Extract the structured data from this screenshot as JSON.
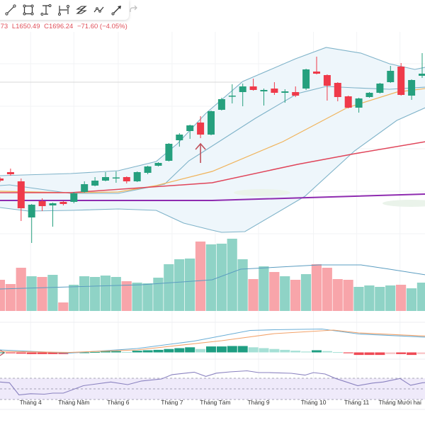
{
  "toolbar": {
    "tools": [
      {
        "name": "trend-line-icon"
      },
      {
        "name": "rectangle-icon"
      },
      {
        "name": "text-icon"
      },
      {
        "name": "measure-icon"
      },
      {
        "name": "parallel-channel-icon"
      },
      {
        "name": "path-icon"
      },
      {
        "name": "arrow-marker-icon"
      }
    ],
    "redo": "redo-icon"
  },
  "legend": {
    "high_partial": ".73",
    "low": "L1650.49",
    "close": "C1696.24",
    "change": "−71.60 (−4.05%)"
  },
  "colors": {
    "up": "#26a07e",
    "down": "#ef3a4a",
    "vol_up": "#8fd3c6",
    "vol_down": "#f8a5aa",
    "bb": "#7fb3c9",
    "bb_fill": "#eef6fb",
    "ma_orange": "#f0b35a",
    "ma_red": "#e0455a",
    "ma_purple": "#8e2bb0",
    "macd": "#6aaed6",
    "signal": "#f2a26a",
    "rsi": "#8a82c0",
    "rsi_band": "#efeafa",
    "annotation": "#c0505a"
  },
  "chart_data": [
    {
      "type": "candlestick",
      "title": "",
      "ylim": [
        744,
        1884
      ],
      "ohlc": [
        [
          1116,
          1124,
          1096,
          1104
        ],
        [
          1152,
          1172,
          1132,
          1140
        ],
        [
          1100,
          1116,
          876,
          948
        ],
        [
          896,
          972,
          752,
          968
        ],
        [
          988,
          1004,
          932,
          960
        ],
        [
          964,
          980,
          844,
          976
        ],
        [
          984,
          988,
          964,
          972
        ],
        [
          984,
          1040,
          976,
          1032
        ],
        [
          1040,
          1100,
          1036,
          1084
        ],
        [
          1076,
          1124,
          1072,
          1104
        ],
        [
          1104,
          1152,
          1100,
          1124
        ],
        [
          1120,
          1156,
          1092,
          1122
        ],
        [
          1124,
          1128,
          1088,
          1100
        ],
        [
          1100,
          1156,
          1096,
          1152
        ],
        [
          1148,
          1188,
          1140,
          1184
        ],
        [
          1188,
          1208,
          1184,
          1204
        ],
        [
          1216,
          1316,
          1212,
          1312
        ],
        [
          1332,
          1372,
          1296,
          1364
        ],
        [
          1384,
          1420,
          1340,
          1416
        ],
        [
          1432,
          1468,
          1344,
          1364
        ],
        [
          1364,
          1500,
          1360,
          1496
        ],
        [
          1504,
          1572,
          1500,
          1564
        ],
        [
          1580,
          1648,
          1540,
          1584
        ],
        [
          1604,
          1652,
          1524,
          1636
        ],
        [
          1636,
          1680,
          1612,
          1616
        ],
        [
          1608,
          1624,
          1528,
          1616
        ],
        [
          1624,
          1660,
          1588,
          1600
        ],
        [
          1600,
          1620,
          1544,
          1608
        ],
        [
          1604,
          1636,
          1576,
          1584
        ],
        [
          1624,
          1736,
          1616,
          1732
        ],
        [
          1720,
          1804,
          1704,
          1708
        ],
        [
          1700,
          1704,
          1556,
          1640
        ],
        [
          1656,
          1660,
          1552,
          1576
        ],
        [
          1580,
          1584,
          1512,
          1516
        ],
        [
          1516,
          1572,
          1488,
          1568
        ],
        [
          1576,
          1604,
          1572,
          1600
        ],
        [
          1600,
          1656,
          1596,
          1652
        ],
        [
          1660,
          1752,
          1656,
          1724
        ],
        [
          1748,
          1768,
          1584,
          1588
        ],
        [
          1584,
          1676,
          1560,
          1672
        ],
        [
          1696,
          1824,
          1684,
          1708
        ]
      ],
      "overlays": {
        "bb_upper": [
          [
            0,
            1132
          ],
          [
            6.7,
            1144
          ],
          [
            11.2,
            1160
          ],
          [
            14.8,
            1212
          ],
          [
            16.8,
            1312
          ],
          [
            19.5,
            1484
          ],
          [
            23,
            1664
          ],
          [
            28,
            1792
          ],
          [
            30.9,
            1856
          ],
          [
            34.2,
            1824
          ],
          [
            36.9,
            1764
          ],
          [
            39.3,
            1732
          ],
          [
            40.3,
            1744
          ]
        ],
        "bb_middle": [
          [
            0,
            1076
          ],
          [
            0.9,
            1080
          ],
          [
            6.7,
            1032
          ],
          [
            11.2,
            1032
          ],
          [
            15.6,
            1084
          ],
          [
            17.9,
            1216
          ],
          [
            19.7,
            1284
          ],
          [
            24.2,
            1456
          ],
          [
            28.2,
            1596
          ],
          [
            30.9,
            1636
          ],
          [
            33.6,
            1628
          ],
          [
            36.9,
            1620
          ],
          [
            40.3,
            1632
          ]
        ],
        "bb_lower": [
          [
            0,
            952
          ],
          [
            2.7,
            932
          ],
          [
            6.7,
            936
          ],
          [
            11.2,
            944
          ],
          [
            14.8,
            936
          ],
          [
            17.4,
            864
          ],
          [
            20.1,
            824
          ],
          [
            21,
            812
          ],
          [
            23.2,
            816
          ],
          [
            28.9,
            1016
          ],
          [
            33.6,
            1272
          ],
          [
            37.6,
            1444
          ],
          [
            40.3,
            1516
          ]
        ],
        "ma_orange": [
          [
            0,
            1044
          ],
          [
            6.7,
            1036
          ],
          [
            11.2,
            1040
          ],
          [
            14.8,
            1076
          ],
          [
            20.1,
            1156
          ],
          [
            26.8,
            1324
          ],
          [
            32.9,
            1516
          ],
          [
            37.6,
            1604
          ],
          [
            40.3,
            1624
          ]
        ],
        "ma_red": [
          [
            0,
            1036
          ],
          [
            6.7,
            1036
          ],
          [
            13.4,
            1064
          ],
          [
            20.1,
            1092
          ],
          [
            28.2,
            1196
          ],
          [
            33.6,
            1256
          ],
          [
            40.3,
            1324
          ]
        ],
        "ma_purple": [
          [
            0,
            992
          ],
          [
            20.1,
            992
          ],
          [
            40.3,
            1028
          ]
        ]
      },
      "annotation_arrow_at_index": 19
    },
    {
      "type": "bar",
      "title": "",
      "values": [
        44,
        38,
        61,
        49,
        48,
        51,
        12,
        37,
        49,
        48,
        50,
        48,
        42,
        40,
        39,
        47,
        66,
        73,
        74,
        98,
        94,
        95,
        102,
        73,
        45,
        63,
        55,
        49,
        44,
        52,
        66,
        61,
        45,
        44,
        34,
        36,
        34,
        36,
        37,
        32,
        40
      ],
      "ma": [
        [
          0,
          31
        ],
        [
          13.4,
          37
        ],
        [
          20.1,
          44
        ],
        [
          22.8,
          59
        ],
        [
          30.2,
          65
        ],
        [
          34.2,
          65
        ],
        [
          36.9,
          59
        ],
        [
          40.3,
          51
        ]
      ]
    },
    {
      "type": "line",
      "title": "",
      "histogram": [
        0,
        -1.2,
        -1.8,
        -2.4,
        -2.4,
        -2.4,
        -2.4,
        -0.6,
        0,
        0.6,
        1.8,
        1.8,
        0.6,
        2.4,
        3,
        3.6,
        4.8,
        6,
        7.2,
        4.8,
        8.4,
        8.4,
        9,
        9,
        7.2,
        6,
        4.8,
        3.6,
        2.4,
        1.2,
        3,
        1.8,
        0.4,
        -1.2,
        -3.6,
        -3.6,
        -3.6,
        -2.4,
        -2.4,
        -3.6,
        -2.4
      ],
      "macd": [
        [
          0,
          3.5
        ],
        [
          6.6,
          -1
        ],
        [
          13,
          5.5
        ],
        [
          18.4,
          16
        ],
        [
          23.7,
          31
        ],
        [
          26,
          32
        ],
        [
          30.5,
          33
        ],
        [
          32,
          30
        ],
        [
          34,
          26
        ],
        [
          41,
          21
        ]
      ],
      "signal": [
        [
          0,
          1.5
        ],
        [
          6.6,
          0
        ],
        [
          13,
          3.5
        ],
        [
          21,
          16.5
        ],
        [
          26,
          26.5
        ],
        [
          31.6,
          31.5
        ],
        [
          34,
          27.5
        ],
        [
          41,
          22.5
        ]
      ]
    },
    {
      "type": "line",
      "title": "",
      "levels": [
        70,
        50,
        30
      ],
      "values": [
        [
          0,
          62.9
        ],
        [
          0.9,
          61.5
        ],
        [
          1.8,
          38.7
        ],
        [
          2.9,
          41
        ],
        [
          4.2,
          40
        ],
        [
          5,
          42
        ],
        [
          6,
          42
        ],
        [
          7.9,
          56
        ],
        [
          10.5,
          62.9
        ],
        [
          12.1,
          58
        ],
        [
          13.4,
          64.8
        ],
        [
          15.3,
          68.7
        ],
        [
          16.3,
          76.8
        ],
        [
          18.4,
          81.5
        ],
        [
          19.5,
          73.5
        ],
        [
          20.5,
          79.6
        ],
        [
          21.8,
          82
        ],
        [
          23.4,
          84
        ],
        [
          24.5,
          80.7
        ],
        [
          25.5,
          80.7
        ],
        [
          27.6,
          79.3
        ],
        [
          28.9,
          75.9
        ],
        [
          29.7,
          80.7
        ],
        [
          30.8,
          78
        ],
        [
          31.8,
          69.6
        ],
        [
          33.9,
          56
        ],
        [
          35.3,
          61
        ],
        [
          36.3,
          62.9
        ],
        [
          37.9,
          69.6
        ],
        [
          38.9,
          56.8
        ],
        [
          40,
          61.5
        ],
        [
          41.3,
          62.5
        ]
      ]
    }
  ],
  "x_axis": {
    "labels": [
      {
        "text": "Tháng 4",
        "at_index": 2.9
      },
      {
        "text": "Tháng Năm",
        "at_index": 7
      },
      {
        "text": "Tháng 6",
        "at_index": 11.2
      },
      {
        "text": "Tháng 7",
        "at_index": 16.3
      },
      {
        "text": "Tháng Tám",
        "at_index": 20.4
      },
      {
        "text": "Tháng 9",
        "at_index": 24.5
      },
      {
        "text": "Tháng 10",
        "at_index": 29.7
      },
      {
        "text": "Tháng 11",
        "at_index": 33.8
      },
      {
        "text": "Tháng Mười hai",
        "at_index": 37.9
      }
    ]
  }
}
